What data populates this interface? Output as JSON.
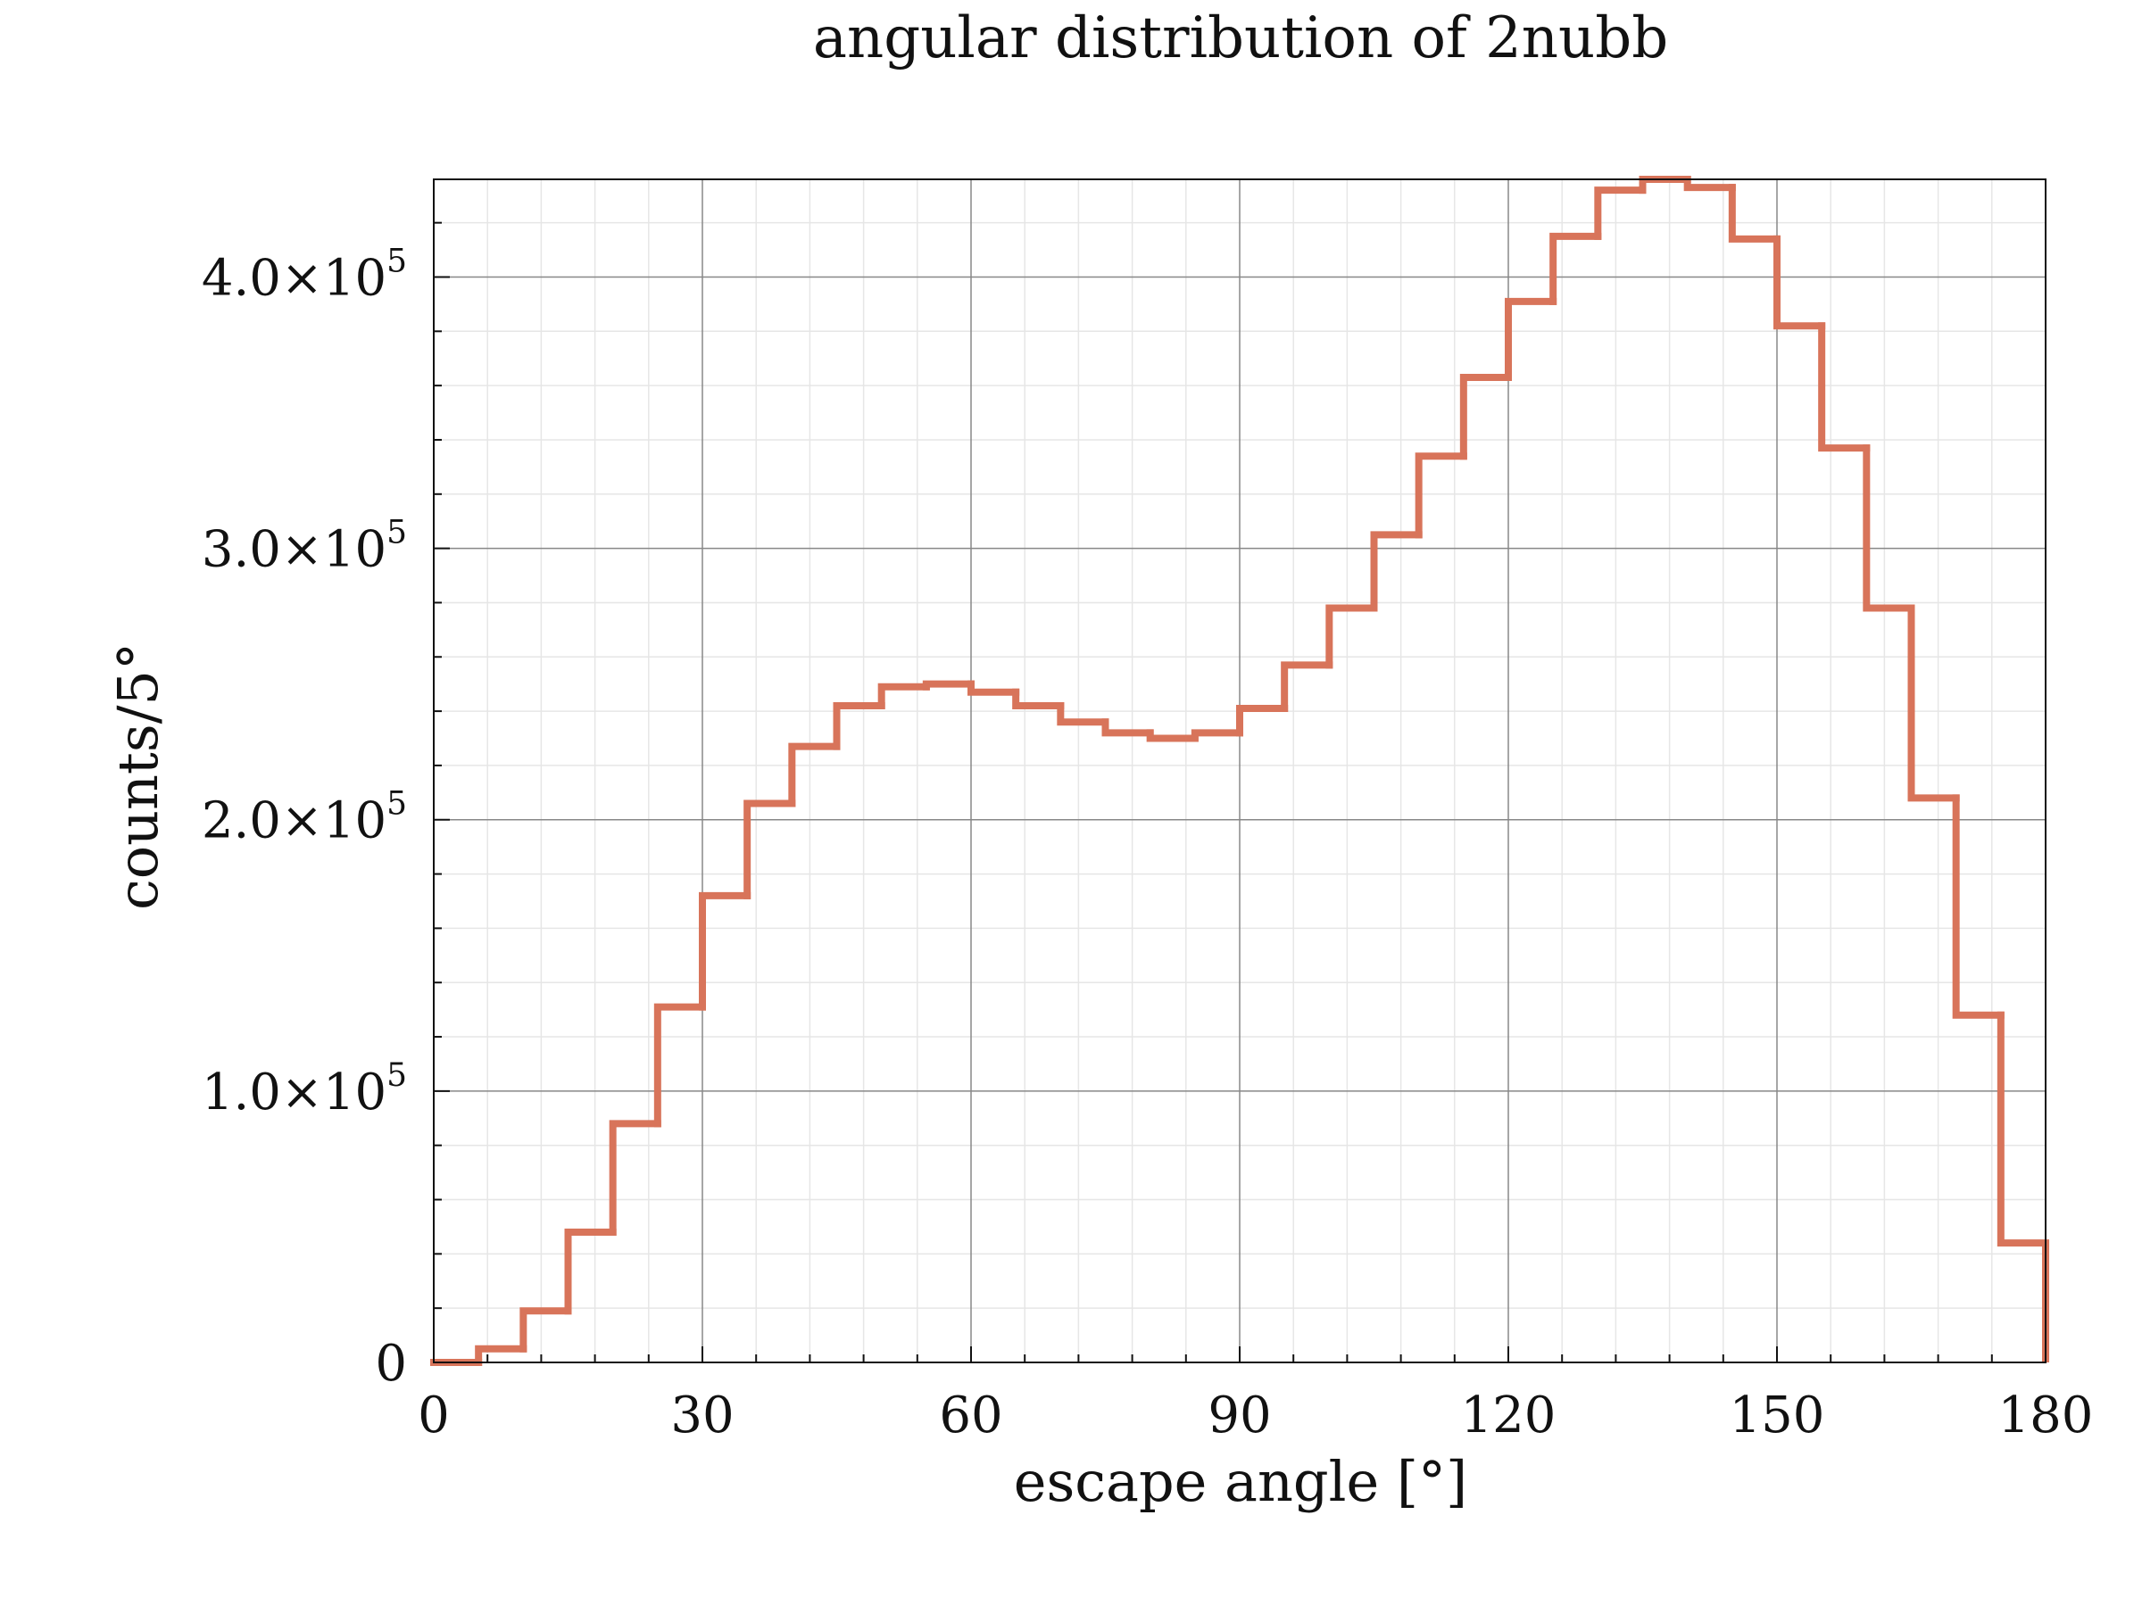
{
  "chart_data": {
    "type": "histogram-step",
    "title": "angular distribution of 2nubb",
    "xlabel": "escape angle [°]",
    "ylabel": "counts/5°",
    "xlim": [
      0,
      180
    ],
    "ylim": [
      0,
      436000
    ],
    "x_ticks": [
      0,
      30,
      60,
      90,
      120,
      150,
      180
    ],
    "x_tick_labels": [
      "0",
      "30",
      "60",
      "90",
      "120",
      "150",
      "180"
    ],
    "y_ticks": [
      0,
      100000,
      200000,
      300000,
      400000
    ],
    "y_tick_labels": [
      {
        "mantissa": "0",
        "exp": ""
      },
      {
        "mantissa": "1.0×10",
        "exp": "5"
      },
      {
        "mantissa": "2.0×10",
        "exp": "5"
      },
      {
        "mantissa": "3.0×10",
        "exp": "5"
      },
      {
        "mantissa": "4.0×10",
        "exp": "5"
      }
    ],
    "grid": true,
    "minor_grid": true,
    "bin_edges": [
      0,
      5,
      10,
      15,
      20,
      25,
      30,
      35,
      40,
      45,
      50,
      55,
      60,
      65,
      70,
      75,
      80,
      85,
      90,
      95,
      100,
      105,
      110,
      115,
      120,
      125,
      130,
      135,
      140,
      145,
      150,
      155,
      160,
      165,
      170,
      175,
      180
    ],
    "values": [
      0,
      5000,
      19000,
      48000,
      88000,
      131000,
      172000,
      206000,
      227000,
      242000,
      249000,
      250000,
      247000,
      242000,
      236000,
      232000,
      230000,
      232000,
      241000,
      257000,
      278000,
      305000,
      334000,
      363000,
      391000,
      415000,
      432000,
      436000,
      433000,
      414000,
      382000,
      337000,
      278000,
      208000,
      128000,
      44000
    ],
    "line_color": "#d8745a",
    "grid_color": "#888888",
    "minor_grid_color": "#e6e6e6"
  }
}
